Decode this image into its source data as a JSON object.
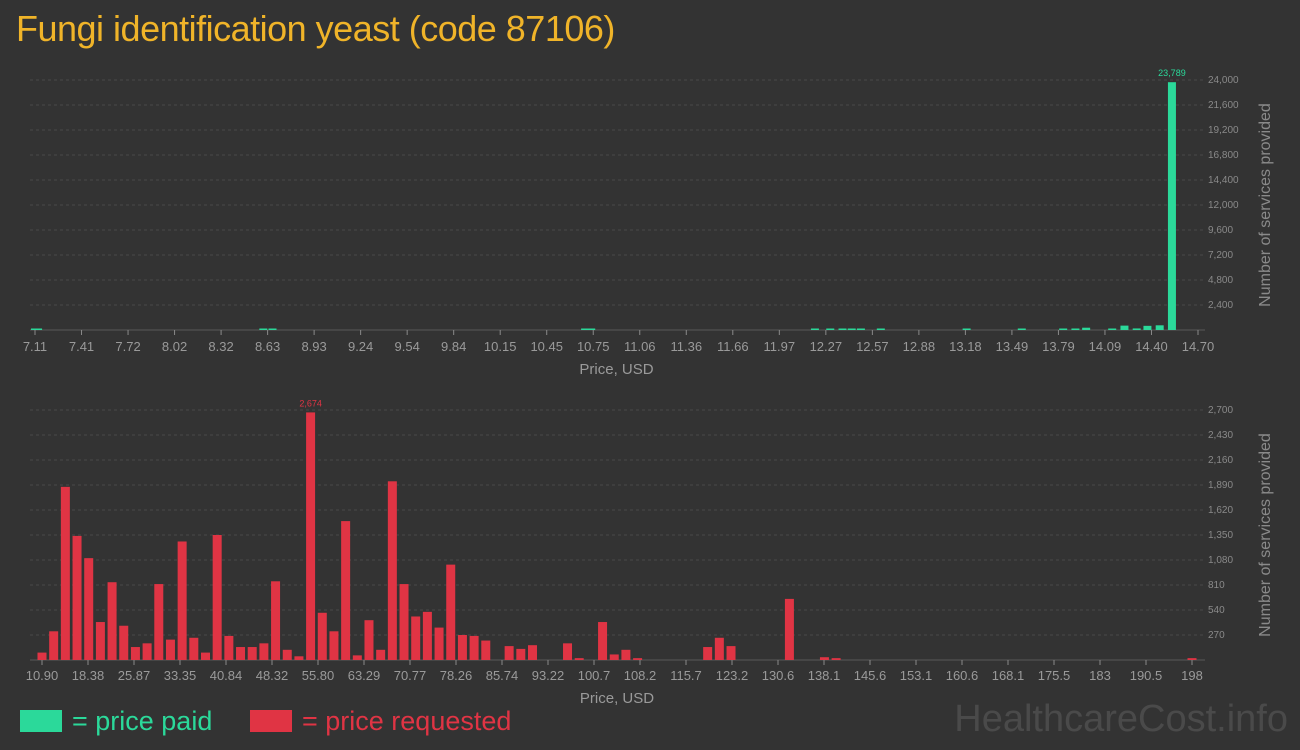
{
  "title": "Fungi identification yeast (code 87106)",
  "watermark": "HealthcareCost.info",
  "legend": {
    "paid_label": "= price paid",
    "requested_label": "= price requested",
    "paid_color": "#2bd99a",
    "requested_color": "#e03444"
  },
  "chart_data": [
    {
      "type": "bar",
      "series_name": "price paid",
      "xlabel": "Price, USD",
      "ylabel": "Number of services provided",
      "xlim": [
        7.11,
        14.7
      ],
      "ylim": [
        0,
        24000
      ],
      "x_ticks": [
        "7.11",
        "7.41",
        "7.72",
        "8.02",
        "8.32",
        "8.63",
        "8.93",
        "9.24",
        "9.54",
        "9.84",
        "10.15",
        "10.45",
        "10.75",
        "11.06",
        "11.36",
        "11.66",
        "11.97",
        "12.27",
        "12.57",
        "12.88",
        "13.18",
        "13.49",
        "13.79",
        "14.09",
        "14.40",
        "14.70"
      ],
      "y_ticks": [
        "2,400",
        "4,800",
        "7,200",
        "9,600",
        "12,000",
        "14,400",
        "16,800",
        "19,200",
        "21,600",
        "24,000"
      ],
      "peak_label": "23,789",
      "bars": [
        {
          "x": 7.11,
          "y": 60
        },
        {
          "x": 7.13,
          "y": 60
        },
        {
          "x": 8.6,
          "y": 90
        },
        {
          "x": 8.66,
          "y": 40
        },
        {
          "x": 10.7,
          "y": 60
        },
        {
          "x": 10.74,
          "y": 40
        },
        {
          "x": 12.2,
          "y": 120
        },
        {
          "x": 12.3,
          "y": 60
        },
        {
          "x": 12.38,
          "y": 60
        },
        {
          "x": 12.44,
          "y": 80
        },
        {
          "x": 12.5,
          "y": 60
        },
        {
          "x": 12.63,
          "y": 60
        },
        {
          "x": 13.19,
          "y": 40
        },
        {
          "x": 13.55,
          "y": 40
        },
        {
          "x": 13.82,
          "y": 60
        },
        {
          "x": 13.9,
          "y": 80
        },
        {
          "x": 13.97,
          "y": 220
        },
        {
          "x": 14.14,
          "y": 80
        },
        {
          "x": 14.22,
          "y": 420
        },
        {
          "x": 14.3,
          "y": 150
        },
        {
          "x": 14.37,
          "y": 400
        },
        {
          "x": 14.45,
          "y": 450
        },
        {
          "x": 14.53,
          "y": 23789
        }
      ]
    },
    {
      "type": "bar",
      "series_name": "price requested",
      "xlabel": "Price, USD",
      "ylabel": "Number of services provided",
      "xlim": [
        10.9,
        198
      ],
      "ylim": [
        0,
        2700
      ],
      "x_ticks": [
        "10.90",
        "18.38",
        "25.87",
        "33.35",
        "40.84",
        "48.32",
        "55.80",
        "63.29",
        "70.77",
        "78.26",
        "85.74",
        "93.22",
        "100.7",
        "108.2",
        "115.7",
        "123.2",
        "130.6",
        "138.1",
        "145.6",
        "153.1",
        "160.6",
        "168.1",
        "175.5",
        "183",
        "190.5",
        "198"
      ],
      "y_ticks": [
        "270",
        "540",
        "810",
        "1,080",
        "1,350",
        "1,620",
        "1,890",
        "2,160",
        "2,430",
        "2,700"
      ],
      "peak_label": "2,674",
      "bars": [
        {
          "x": 10.9,
          "y": 80
        },
        {
          "x": 12.8,
          "y": 310
        },
        {
          "x": 14.7,
          "y": 1870
        },
        {
          "x": 16.6,
          "y": 1340
        },
        {
          "x": 18.5,
          "y": 1100
        },
        {
          "x": 20.4,
          "y": 410
        },
        {
          "x": 22.3,
          "y": 840
        },
        {
          "x": 24.2,
          "y": 370
        },
        {
          "x": 26.1,
          "y": 140
        },
        {
          "x": 28.0,
          "y": 180
        },
        {
          "x": 29.9,
          "y": 820
        },
        {
          "x": 31.8,
          "y": 220
        },
        {
          "x": 33.7,
          "y": 1280
        },
        {
          "x": 35.6,
          "y": 240
        },
        {
          "x": 37.5,
          "y": 80
        },
        {
          "x": 39.4,
          "y": 1350
        },
        {
          "x": 41.3,
          "y": 260
        },
        {
          "x": 43.2,
          "y": 140
        },
        {
          "x": 45.1,
          "y": 140
        },
        {
          "x": 47.0,
          "y": 180
        },
        {
          "x": 48.9,
          "y": 850
        },
        {
          "x": 50.8,
          "y": 110
        },
        {
          "x": 52.7,
          "y": 40
        },
        {
          "x": 54.6,
          "y": 2674
        },
        {
          "x": 56.5,
          "y": 510
        },
        {
          "x": 58.4,
          "y": 310
        },
        {
          "x": 60.3,
          "y": 1500
        },
        {
          "x": 62.2,
          "y": 50
        },
        {
          "x": 64.1,
          "y": 430
        },
        {
          "x": 66.0,
          "y": 110
        },
        {
          "x": 67.9,
          "y": 1930
        },
        {
          "x": 69.8,
          "y": 820
        },
        {
          "x": 71.7,
          "y": 470
        },
        {
          "x": 73.6,
          "y": 520
        },
        {
          "x": 75.5,
          "y": 350
        },
        {
          "x": 77.4,
          "y": 1030
        },
        {
          "x": 79.3,
          "y": 270
        },
        {
          "x": 81.2,
          "y": 260
        },
        {
          "x": 83.1,
          "y": 210
        },
        {
          "x": 86.9,
          "y": 150
        },
        {
          "x": 88.8,
          "y": 120
        },
        {
          "x": 90.7,
          "y": 160
        },
        {
          "x": 96.4,
          "y": 180
        },
        {
          "x": 98.3,
          "y": 20
        },
        {
          "x": 102.1,
          "y": 410
        },
        {
          "x": 104.0,
          "y": 60
        },
        {
          "x": 105.9,
          "y": 110
        },
        {
          "x": 107.8,
          "y": 20
        },
        {
          "x": 119.2,
          "y": 140
        },
        {
          "x": 121.1,
          "y": 240
        },
        {
          "x": 123.0,
          "y": 150
        },
        {
          "x": 132.5,
          "y": 660
        },
        {
          "x": 138.2,
          "y": 30
        },
        {
          "x": 140.1,
          "y": 20
        },
        {
          "x": 198.0,
          "y": 20
        }
      ]
    }
  ]
}
